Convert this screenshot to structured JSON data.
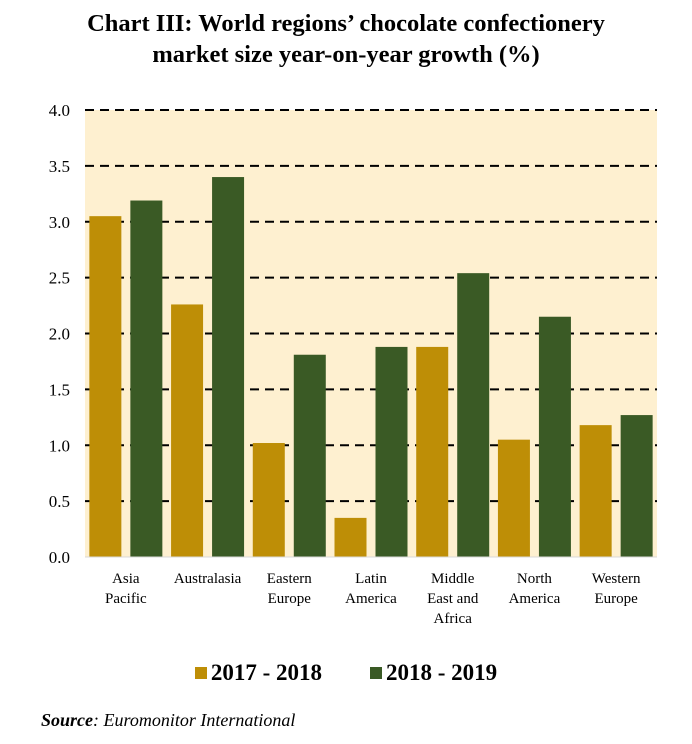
{
  "title_line1": "Chart III: World regions’ chocolate confectionery",
  "title_line2": "market size year-on-year growth (%)",
  "source_label": "Source",
  "source_text": ": Euromonitor International",
  "colors": {
    "series1": "#BE8E06",
    "series2": "#3A5A25",
    "plot_bg": "#FEF0D0"
  },
  "chart_data": {
    "type": "bar",
    "title": "Chart III: World regions’ chocolate confectionery market size year-on-year growth (%)",
    "xlabel": "",
    "ylabel": "",
    "ylim": [
      0,
      4.0
    ],
    "yticks": [
      "0.0",
      "0.5",
      "1.0",
      "1.5",
      "2.0",
      "2.5",
      "3.0",
      "3.5",
      "4.0"
    ],
    "ytick_values": [
      0,
      0.5,
      1.0,
      1.5,
      2.0,
      2.5,
      3.0,
      3.5,
      4.0
    ],
    "grid": "horizontal dashed",
    "legend_position": "bottom",
    "categories": [
      [
        "Asia",
        "Pacific"
      ],
      [
        "Australasia"
      ],
      [
        "Eastern",
        "Europe"
      ],
      [
        "Latin",
        "America"
      ],
      [
        "Middle",
        "East and",
        "Africa"
      ],
      [
        "North",
        "America"
      ],
      [
        "Western",
        "Europe"
      ]
    ],
    "series": [
      {
        "name": "2017 - 2018",
        "values": [
          3.05,
          2.26,
          1.02,
          0.35,
          1.88,
          1.05,
          1.18
        ]
      },
      {
        "name": "2018 - 2019",
        "values": [
          3.19,
          3.4,
          1.81,
          1.88,
          2.54,
          2.15,
          1.27
        ]
      }
    ]
  }
}
